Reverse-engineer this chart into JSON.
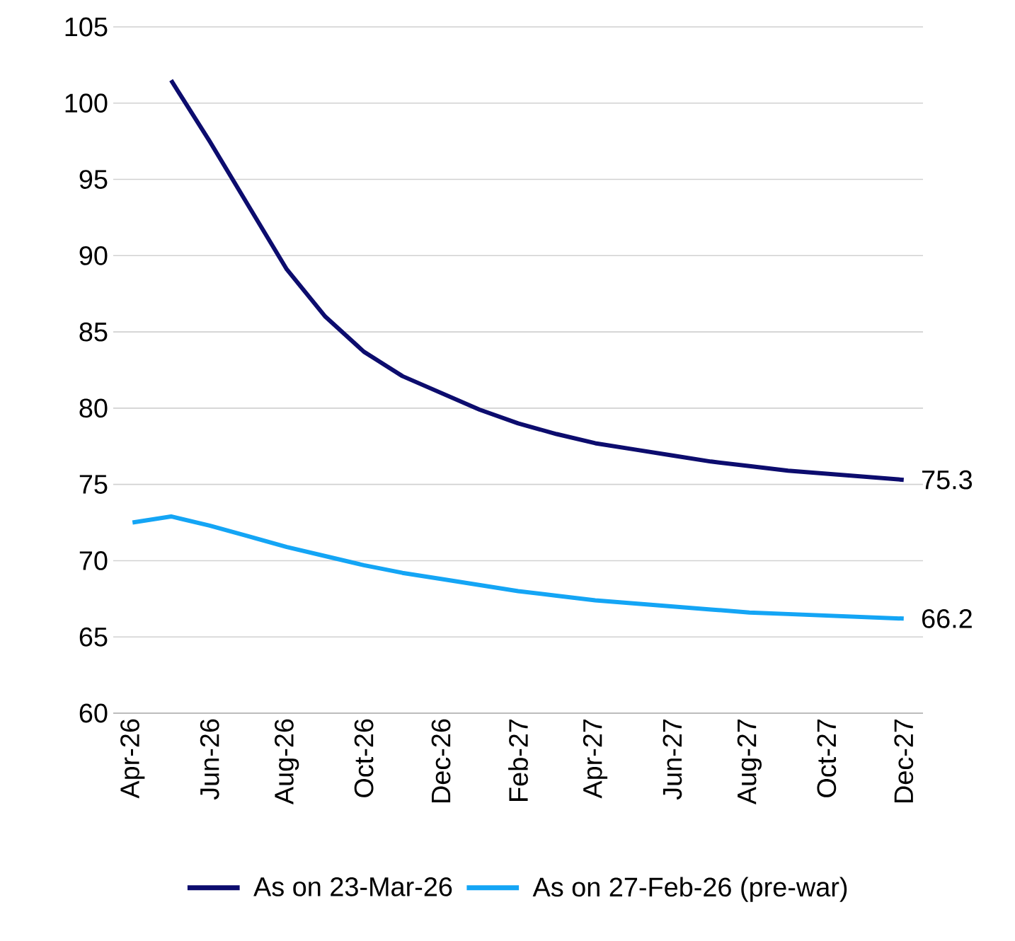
{
  "chart_data": {
    "type": "line",
    "categories": [
      "Apr-26",
      null,
      "Jun-26",
      null,
      "Aug-26",
      null,
      "Oct-26",
      null,
      "Dec-26",
      null,
      "Feb-27",
      null,
      "Apr-27",
      null,
      "Jun-27",
      null,
      "Aug-27",
      null,
      "Oct-27",
      null,
      "Dec-27"
    ],
    "series": [
      {
        "name": "As on 23-Mar-26",
        "color": "#0c0c6e",
        "values": [
          null,
          101.5,
          97.5,
          93.3,
          89.1,
          86.0,
          83.7,
          82.1,
          81.0,
          79.9,
          79.0,
          78.3,
          77.7,
          77.3,
          76.9,
          76.5,
          76.2,
          75.9,
          75.7,
          75.5,
          75.3
        ],
        "value_labels": [
          null,
          null,
          null,
          null,
          null,
          null,
          null,
          null,
          null,
          null,
          null,
          null,
          null,
          null,
          null,
          null,
          null,
          null,
          null,
          null,
          "75.3"
        ]
      },
      {
        "name": "As on 27-Feb-26 (pre-war)",
        "color": "#14a5f5",
        "values": [
          72.5,
          72.9,
          72.3,
          71.6,
          70.9,
          70.3,
          69.7,
          69.2,
          68.8,
          68.4,
          68.0,
          67.7,
          67.4,
          67.2,
          67.0,
          66.8,
          66.6,
          66.5,
          66.4,
          66.3,
          66.2
        ],
        "value_labels": [
          null,
          null,
          null,
          null,
          null,
          null,
          null,
          null,
          null,
          null,
          null,
          null,
          null,
          null,
          null,
          null,
          null,
          null,
          null,
          null,
          "66.2"
        ]
      }
    ],
    "ylim": [
      60,
      105
    ],
    "yticks": [
      60,
      65,
      70,
      75,
      80,
      85,
      90,
      95,
      100,
      105
    ],
    "grid": "y",
    "legend": "bottom",
    "marker": "none",
    "line_style": "solid"
  }
}
